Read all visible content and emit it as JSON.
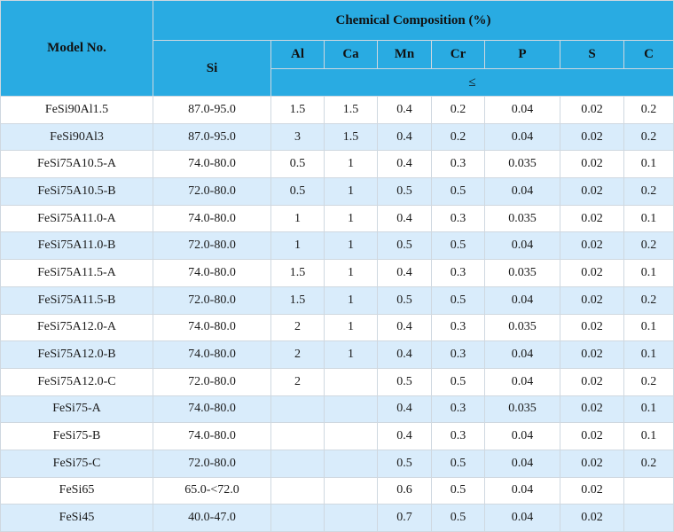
{
  "header": {
    "model_label": "Model No.",
    "composition_label": "Chemical Composition (%)",
    "si_label": "Si",
    "columns": [
      "Al",
      "Ca",
      "Mn",
      "Cr",
      "P",
      "S",
      "C"
    ],
    "max_symbol": "≤"
  },
  "rows": [
    [
      "FeSi90Al1.5",
      "87.0-95.0",
      "1.5",
      "1.5",
      "0.4",
      "0.2",
      "0.04",
      "0.02",
      "0.2"
    ],
    [
      "FeSi90Al3",
      "87.0-95.0",
      "3",
      "1.5",
      "0.4",
      "0.2",
      "0.04",
      "0.02",
      "0.2"
    ],
    [
      "FeSi75A10.5-A",
      "74.0-80.0",
      "0.5",
      "1",
      "0.4",
      "0.3",
      "0.035",
      "0.02",
      "0.1"
    ],
    [
      "FeSi75A10.5-B",
      "72.0-80.0",
      "0.5",
      "1",
      "0.5",
      "0.5",
      "0.04",
      "0.02",
      "0.2"
    ],
    [
      "FeSi75A11.0-A",
      "74.0-80.0",
      "1",
      "1",
      "0.4",
      "0.3",
      "0.035",
      "0.02",
      "0.1"
    ],
    [
      "FeSi75A11.0-B",
      "72.0-80.0",
      "1",
      "1",
      "0.5",
      "0.5",
      "0.04",
      "0.02",
      "0.2"
    ],
    [
      "FeSi75A11.5-A",
      "74.0-80.0",
      "1.5",
      "1",
      "0.4",
      "0.3",
      "0.035",
      "0.02",
      "0.1"
    ],
    [
      "FeSi75A11.5-B",
      "72.0-80.0",
      "1.5",
      "1",
      "0.5",
      "0.5",
      "0.04",
      "0.02",
      "0.2"
    ],
    [
      "FeSi75A12.0-A",
      "74.0-80.0",
      "2",
      "1",
      "0.4",
      "0.3",
      "0.035",
      "0.02",
      "0.1"
    ],
    [
      "FeSi75A12.0-B",
      "74.0-80.0",
      "2",
      "1",
      "0.4",
      "0.3",
      "0.04",
      "0.02",
      "0.1"
    ],
    [
      "FeSi75A12.0-C",
      "72.0-80.0",
      "2",
      "",
      "0.5",
      "0.5",
      "0.04",
      "0.02",
      "0.2"
    ],
    [
      "FeSi75-A",
      "74.0-80.0",
      "",
      "",
      "0.4",
      "0.3",
      "0.035",
      "0.02",
      "0.1"
    ],
    [
      "FeSi75-B",
      "74.0-80.0",
      "",
      "",
      "0.4",
      "0.3",
      "0.04",
      "0.02",
      "0.1"
    ],
    [
      "FeSi75-C",
      "72.0-80.0",
      "",
      "",
      "0.5",
      "0.5",
      "0.04",
      "0.02",
      "0.2"
    ],
    [
      "FeSi65",
      "65.0-<72.0",
      "",
      "",
      "0.6",
      "0.5",
      "0.04",
      "0.02",
      ""
    ],
    [
      "FeSi45",
      "40.0-47.0",
      "",
      "",
      "0.7",
      "0.5",
      "0.04",
      "0.02",
      ""
    ]
  ]
}
